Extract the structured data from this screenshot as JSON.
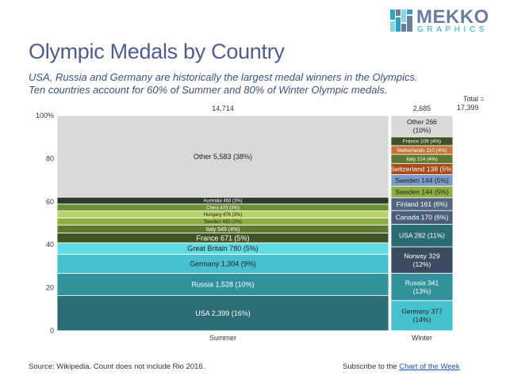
{
  "header": {
    "title": "Olympic Medals by Country",
    "subtitle_line1": "USA, Russia and Germany are historically the largest medal winners in the Olympics.",
    "subtitle_line2": "Ten countries account for 60% of Summer and 80% of Winter Olympic medals.",
    "logo_word": "MEKKO",
    "logo_sub": "GRAPHICS"
  },
  "footer": {
    "source": "Source: Wikipedia.  Count does not include Rio 2016.",
    "subscribe_text": "Subscribe to the",
    "subscribe_link": "Chart of the Week"
  },
  "colors": {
    "title": "#4f5d8a",
    "subtitle": "#3c4f80",
    "logo_accent": "#2aa6c4",
    "link": "#1a56b4"
  },
  "chart_data": {
    "type": "mekko",
    "title": "Olympic Medals by Country",
    "ylim": [
      0,
      100
    ],
    "yticks": [
      "0",
      "20",
      "40",
      "60",
      "80",
      "100%"
    ],
    "grand_total_label": "Total =",
    "grand_total": "17,399",
    "columns": [
      {
        "name": "Summer",
        "total": 14714,
        "total_label": "14,714",
        "segments": [
          {
            "label": "USA 2,399 (16%)",
            "country": "USA",
            "value": 2399,
            "pct": 16,
            "color": "#2b6b72"
          },
          {
            "label": "Russia 1,528 (10%)",
            "country": "Russia",
            "value": 1528,
            "pct": 10,
            "color": "#31929c"
          },
          {
            "label": "Germany 1,304 (9%)",
            "country": "Germany",
            "value": 1304,
            "pct": 9,
            "color": "#47c1ce"
          },
          {
            "label": "Great Britain 780 (5%)",
            "country": "Great Britain",
            "value": 780,
            "pct": 5,
            "color": "#62dbe5"
          },
          {
            "label": "France 671 (5%)",
            "country": "France",
            "value": 671,
            "pct": 5,
            "color": "#3e5424"
          },
          {
            "label": "Italy 549 (4%)",
            "country": "Italy",
            "value": 549,
            "pct": 4,
            "color": "#5e7a2e"
          },
          {
            "label": "Sweden 483 (3%)",
            "country": "Sweden",
            "value": 483,
            "pct": 3,
            "color": "#8db045"
          },
          {
            "label": "Hungary 476 (3%)",
            "country": "Hungary",
            "value": 476,
            "pct": 3,
            "color": "#b7d36a"
          },
          {
            "label": "China 473 (3%)",
            "country": "China",
            "value": 473,
            "pct": 3,
            "color": "#6e9138"
          },
          {
            "label": "Australia 468 (3%)",
            "country": "Australia",
            "value": 468,
            "pct": 3,
            "color": "#2f3b2a"
          },
          {
            "label": "Other 5,583 (38%)",
            "country": "Other",
            "value": 5583,
            "pct": 38,
            "color": "#d9d9d9"
          }
        ]
      },
      {
        "name": "Winter",
        "total": 2685,
        "total_label": "2,685",
        "segments": [
          {
            "label": "Germany 377\n(14%)",
            "country": "Germany",
            "value": 377,
            "pct": 14,
            "color": "#47c1ce"
          },
          {
            "label": "Russia 341\n(13%)",
            "country": "Russia",
            "value": 341,
            "pct": 13,
            "color": "#31929c"
          },
          {
            "label": "Norway 329\n(12%)",
            "country": "Norway",
            "value": 329,
            "pct": 12,
            "color": "#3a4a5f"
          },
          {
            "label": "USA 282 (11%)",
            "country": "USA",
            "value": 282,
            "pct": 11,
            "color": "#2b6b72"
          },
          {
            "label": "Canada 170 (6%)",
            "country": "Canada",
            "value": 170,
            "pct": 6,
            "color": "#4a5d7a"
          },
          {
            "label": "Finland 161 (6%)",
            "country": "Finland",
            "value": 161,
            "pct": 6,
            "color": "#55657f"
          },
          {
            "label": "Sweden 144 (5%)",
            "country": "Sweden",
            "value": 144,
            "pct": 5,
            "color": "#8db045"
          },
          {
            "label": "Sweden 144 (5%)",
            "country": "Sweden",
            "value": 144,
            "pct": 5,
            "color": "#7c9bc9"
          },
          {
            "label": "Switzerland 138 (5%)",
            "country": "Switzerland",
            "value": 138,
            "pct": 5,
            "color": "#a64a1a"
          },
          {
            "label": "Italy 114 (4%)",
            "country": "Italy",
            "value": 114,
            "pct": 4,
            "color": "#5e7a2e"
          },
          {
            "label": "Netherlands 110 (4%)",
            "country": "Netherlands",
            "value": 110,
            "pct": 4,
            "color": "#c8763a"
          },
          {
            "label": "France 109 (4%)",
            "country": "France",
            "value": 109,
            "pct": 4,
            "color": "#3e5424"
          },
          {
            "label": "Other 266\n(10%)",
            "country": "Other",
            "value": 266,
            "pct": 10,
            "color": "#d9d9d9"
          }
        ]
      }
    ]
  }
}
